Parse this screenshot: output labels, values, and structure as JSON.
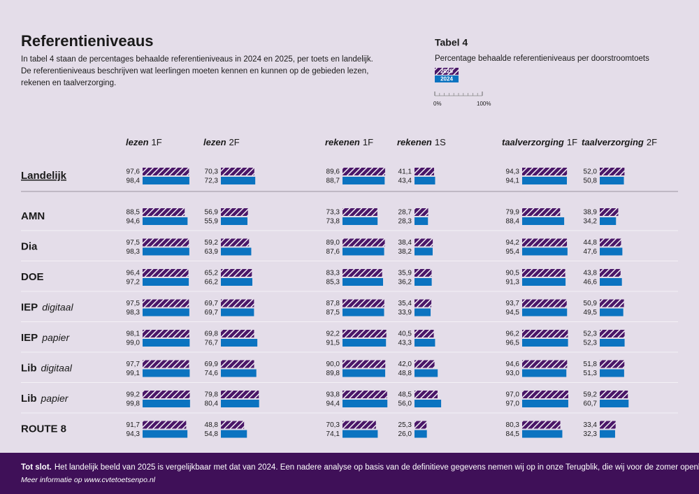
{
  "header": {
    "title": "Referentieniveaus",
    "intro": [
      "In tabel 4 staan de percentages behaalde referentieniveaus in 2024 en 2025, per toets en landelijk.",
      "De referentieniveaus beschrijven wat leerlingen moeten kennen en kunnen op de gebieden lezen,",
      "rekenen en taalverzorging."
    ]
  },
  "caption": {
    "title": "Tabel 4",
    "subtitle": "Percentage behaalde referentieniveaus per doorstroomtoets",
    "legend": [
      {
        "name": "2025",
        "color": "#4a1768",
        "hatched": true
      },
      {
        "name": "2024",
        "color": "#0b73c0",
        "hatched": false
      }
    ],
    "scale": {
      "lim": [
        0,
        100
      ],
      "ticks": [
        {
          "value": 0,
          "label": "0%"
        },
        {
          "value": 100,
          "label": "100%"
        }
      ]
    }
  },
  "table": {
    "columns": [
      {
        "subject": "lezen",
        "level": "1F"
      },
      {
        "subject": "lezen",
        "level": "2F"
      },
      {
        "subject": "rekenen",
        "level": "1F"
      },
      {
        "subject": "rekenen",
        "level": "1S"
      },
      {
        "subject": "taalverzorging",
        "level": "1F"
      },
      {
        "subject": "taalverzorging",
        "level": "2F"
      }
    ],
    "rows": [
      {
        "name": "Landelijk",
        "values": [
          [
            97.6,
            98.4
          ],
          [
            70.3,
            72.3
          ],
          [
            89.6,
            88.7
          ],
          [
            41.1,
            43.4
          ],
          [
            94.3,
            94.1
          ],
          [
            52.0,
            50.8
          ]
        ],
        "value_labels": [
          [
            "97,6",
            "98,4"
          ],
          [
            "70,3",
            "72,3"
          ],
          [
            "89,6",
            "88,7"
          ],
          [
            "41,1",
            "43,4"
          ],
          [
            "94,3",
            "94,1"
          ],
          [
            "52,0",
            "50,8"
          ]
        ]
      },
      {
        "name": "AMN",
        "values": [
          [
            88.5,
            94.6
          ],
          [
            56.9,
            55.9
          ],
          [
            73.3,
            73.8
          ],
          [
            28.7,
            28.3
          ],
          [
            79.9,
            88.4
          ],
          [
            38.9,
            34.2
          ]
        ],
        "value_labels": [
          [
            "88,5",
            "94,6"
          ],
          [
            "56,9",
            "55,9"
          ],
          [
            "73,3",
            "73,8"
          ],
          [
            "28,7",
            "28,3"
          ],
          [
            "79,9",
            "88,4"
          ],
          [
            "38,9",
            "34,2"
          ]
        ]
      },
      {
        "name": "Dia",
        "values": [
          [
            97.5,
            98.3
          ],
          [
            59.2,
            63.9
          ],
          [
            89.0,
            87.6
          ],
          [
            38.4,
            38.2
          ],
          [
            94.2,
            95.4
          ],
          [
            44.8,
            47.6
          ]
        ],
        "value_labels": [
          [
            "97,5",
            "98,3"
          ],
          [
            "59,2",
            "63,9"
          ],
          [
            "89,0",
            "87,6"
          ],
          [
            "38,4",
            "38,2"
          ],
          [
            "94,2",
            "95,4"
          ],
          [
            "44,8",
            "47,6"
          ]
        ]
      },
      {
        "name": "DOE",
        "values": [
          [
            96.4,
            97.2
          ],
          [
            65.2,
            66.2
          ],
          [
            83.3,
            85.3
          ],
          [
            35.9,
            36.2
          ],
          [
            90.5,
            91.3
          ],
          [
            43.8,
            46.6
          ]
        ],
        "value_labels": [
          [
            "96,4",
            "97,2"
          ],
          [
            "65,2",
            "66,2"
          ],
          [
            "83,3",
            "85,3"
          ],
          [
            "35,9",
            "36,2"
          ],
          [
            "90,5",
            "91,3"
          ],
          [
            "43,8",
            "46,6"
          ]
        ]
      },
      {
        "name": "IEP",
        "qualifier": "digitaal",
        "values": [
          [
            97.5,
            98.3
          ],
          [
            69.7,
            69.7
          ],
          [
            87.8,
            87.5
          ],
          [
            35.4,
            33.9
          ],
          [
            93.7,
            94.5
          ],
          [
            50.9,
            49.5
          ]
        ],
        "value_labels": [
          [
            "97,5",
            "98,3"
          ],
          [
            "69,7",
            "69,7"
          ],
          [
            "87,8",
            "87,5"
          ],
          [
            "35,4",
            "33,9"
          ],
          [
            "93,7",
            "94,5"
          ],
          [
            "50,9",
            "49,5"
          ]
        ]
      },
      {
        "name": "IEP",
        "qualifier": "papier",
        "values": [
          [
            98.1,
            99.0
          ],
          [
            69.8,
            76.7
          ],
          [
            92.2,
            91.5
          ],
          [
            40.5,
            43.3
          ],
          [
            96.2,
            96.5
          ],
          [
            52.3,
            52.3
          ]
        ],
        "value_labels": [
          [
            "98,1",
            "99,0"
          ],
          [
            "69,8",
            "76,7"
          ],
          [
            "92,2",
            "91,5"
          ],
          [
            "40,5",
            "43,3"
          ],
          [
            "96,2",
            "96,5"
          ],
          [
            "52,3",
            "52,3"
          ]
        ]
      },
      {
        "name": "Lib",
        "qualifier": "digitaal",
        "values": [
          [
            97.7,
            99.1
          ],
          [
            69.9,
            74.6
          ],
          [
            90.0,
            89.8
          ],
          [
            42.0,
            48.8
          ],
          [
            94.6,
            93.0
          ],
          [
            51.8,
            51.3
          ]
        ],
        "value_labels": [
          [
            "97,7",
            "99,1"
          ],
          [
            "69,9",
            "74,6"
          ],
          [
            "90,0",
            "89,8"
          ],
          [
            "42,0",
            "48,8"
          ],
          [
            "94,6",
            "93,0"
          ],
          [
            "51,8",
            "51,3"
          ]
        ]
      },
      {
        "name": "Lib",
        "qualifier": "papier",
        "values": [
          [
            99.2,
            99.8
          ],
          [
            79.8,
            80.4
          ],
          [
            93.8,
            94.4
          ],
          [
            48.5,
            56.0
          ],
          [
            97.0,
            97.0
          ],
          [
            59.2,
            60.7
          ]
        ],
        "value_labels": [
          [
            "99,2",
            "99,8"
          ],
          [
            "79,8",
            "80,4"
          ],
          [
            "93,8",
            "94,4"
          ],
          [
            "48,5",
            "56,0"
          ],
          [
            "97,0",
            "97,0"
          ],
          [
            "59,2",
            "60,7"
          ]
        ]
      },
      {
        "name": "ROUTE 8",
        "values": [
          [
            91.7,
            94.3
          ],
          [
            48.8,
            54.8
          ],
          [
            70.3,
            74.1
          ],
          [
            25.3,
            26.0
          ],
          [
            80.3,
            84.5
          ],
          [
            33.4,
            32.3
          ]
        ],
        "value_labels": [
          [
            "91,7",
            "94,3"
          ],
          [
            "48,8",
            "54,8"
          ],
          [
            "70,3",
            "74,1"
          ],
          [
            "25,3",
            "26,0"
          ],
          [
            "80,3",
            "84,5"
          ],
          [
            "33,4",
            "32,3"
          ]
        ]
      }
    ]
  },
  "footer": {
    "lead": "Tot slot.",
    "text": "Het landelijk beeld van 2025 is vergelijkbaar met dat van 2024. Een nadere analyse op basis van de definitieve gegevens nemen wij op in onze Terugblik, die wij voor de zomer openbaar maken.",
    "more": "Meer informatie op www.cvtetoetsenpo.nl"
  }
}
